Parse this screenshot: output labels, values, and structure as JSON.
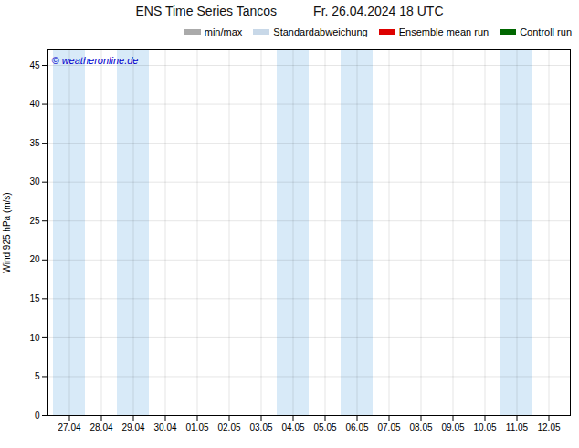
{
  "chart_data": {
    "type": "line",
    "title": "ENS Time Series Tancos",
    "subtitle": "Fr. 26.04.2024 18 UTC",
    "y_label": "Wind 925 hPa (m/s)",
    "categories": [
      "27.04",
      "28.04",
      "29.04",
      "30.04",
      "01.05",
      "02.05",
      "03.05",
      "04.05",
      "05.05",
      "06.05",
      "07.05",
      "08.05",
      "09.05",
      "10.05",
      "11.05",
      "12.05"
    ],
    "series": [
      {
        "name": "min/max",
        "color": "#aaaaaa",
        "values": [
          null,
          null,
          null,
          null,
          null,
          null,
          null,
          null,
          null,
          null,
          null,
          null,
          null,
          null,
          null,
          null
        ]
      },
      {
        "name": "Standardabweichung",
        "color": "#c8d8e8",
        "values": [
          null,
          null,
          null,
          null,
          null,
          null,
          null,
          null,
          null,
          null,
          null,
          null,
          null,
          null,
          null,
          null
        ]
      },
      {
        "name": "Ensemble mean run",
        "color": "#dd0000",
        "values": [
          null,
          null,
          null,
          null,
          null,
          null,
          null,
          null,
          null,
          null,
          null,
          null,
          null,
          null,
          null,
          null
        ]
      },
      {
        "name": "Controll run",
        "color": "#006600",
        "values": [
          null,
          null,
          null,
          null,
          null,
          null,
          null,
          null,
          null,
          null,
          null,
          null,
          null,
          null,
          null,
          null
        ]
      }
    ],
    "shaded": {
      "categories": [
        "27.04",
        "29.04",
        "04.05",
        "06.05",
        "11.05"
      ],
      "color": "#d8eaf8"
    },
    "annotations": [
      {
        "text": "© weatheronline.de",
        "color": "#0000cc"
      }
    ],
    "ylim": [
      0,
      47
    ],
    "yticks": [
      0,
      5,
      10,
      15,
      20,
      25,
      30,
      35,
      40,
      45
    ],
    "grid": true,
    "legend": "upper right"
  }
}
